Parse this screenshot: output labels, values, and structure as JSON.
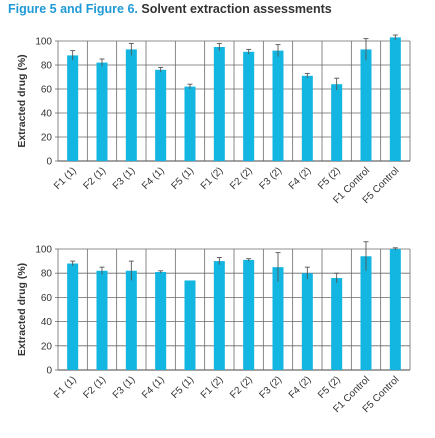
{
  "figure_caption": {
    "lead": "Figure 5 and Figure 6.",
    "rest": " Solvent extraction assessments"
  },
  "colors": {
    "bar": "#13b5e1",
    "grid": "#6a6a6a",
    "error_bar": "#555555",
    "caption_lead": "#1f9ad6",
    "text": "#333333"
  },
  "chart_data": [
    {
      "type": "bar",
      "title": "",
      "xlabel": "",
      "ylabel": "Extracted drug (%)",
      "ylim": [
        0,
        100
      ],
      "yticks": [
        0,
        20,
        40,
        60,
        80,
        100
      ],
      "grid": true,
      "categories": [
        "F1 (1)",
        "F2 (1)",
        "F3 (1)",
        "F4 (1)",
        "F5 (1)",
        "F1 (2)",
        "F2 (2)",
        "F3 (2)",
        "F4 (2)",
        "F5 (2)",
        "F1 Control",
        "F5 Control"
      ],
      "values": [
        88,
        82,
        93,
        76,
        62,
        95,
        91,
        92,
        71,
        64,
        93,
        103
      ],
      "errors": [
        4,
        3,
        5,
        2,
        2,
        3,
        2,
        5,
        2,
        5,
        9,
        2
      ]
    },
    {
      "type": "bar",
      "title": "",
      "xlabel": "",
      "ylabel": "Extracted drug (%)",
      "ylim": [
        0,
        100
      ],
      "yticks": [
        0,
        20,
        40,
        60,
        80,
        100
      ],
      "grid": true,
      "categories": [
        "F1 (1)",
        "F2 (1)",
        "F3 (1)",
        "F4 (1)",
        "F5 (1)",
        "F1 (2)",
        "F2 (2)",
        "F3 (2)",
        "F4 (2)",
        "F5 (2)",
        "F1 Control",
        "F5 Control"
      ],
      "values": [
        88,
        82,
        82,
        81,
        74,
        90,
        91,
        85,
        80,
        76,
        94,
        100
      ],
      "errors": [
        2,
        3,
        8,
        1,
        0,
        3,
        1,
        12,
        5,
        4,
        12,
        1
      ]
    }
  ]
}
